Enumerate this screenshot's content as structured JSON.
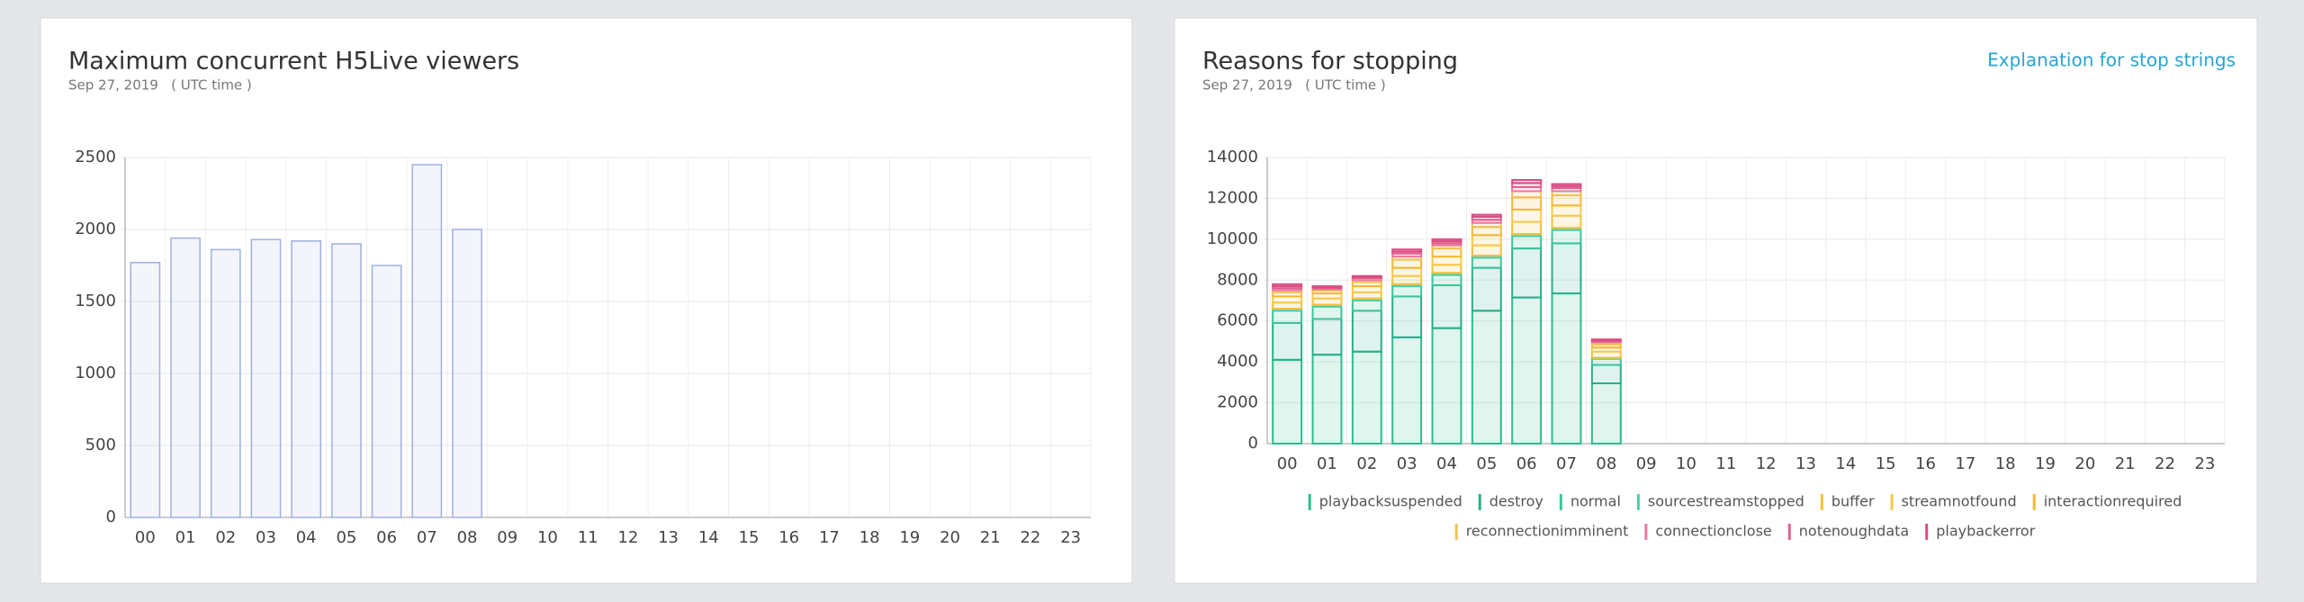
{
  "chart_data": [
    {
      "type": "bar",
      "title": "Maximum concurrent H5Live viewers",
      "subtitle": "Sep 27, 2019   ( UTC time )",
      "categories": [
        "00",
        "01",
        "02",
        "03",
        "04",
        "05",
        "06",
        "07",
        "08",
        "09",
        "10",
        "11",
        "12",
        "13",
        "14",
        "15",
        "16",
        "17",
        "18",
        "19",
        "20",
        "21",
        "22",
        "23"
      ],
      "values": [
        1770,
        1940,
        1860,
        1930,
        1920,
        1900,
        1750,
        2450,
        2000,
        null,
        null,
        null,
        null,
        null,
        null,
        null,
        null,
        null,
        null,
        null,
        null,
        null,
        null,
        null
      ],
      "color": "#9fb0e0",
      "ylim": [
        0,
        2500
      ],
      "yticks": [
        0,
        500,
        1000,
        1500,
        2000,
        2500
      ],
      "grid": true
    },
    {
      "type": "stacked_bar",
      "title": "Reasons for stopping",
      "subtitle": "Sep 27, 2019   ( UTC time )",
      "link": "Explanation for stop strings",
      "categories": [
        "00",
        "01",
        "02",
        "03",
        "04",
        "05",
        "06",
        "07",
        "08",
        "09",
        "10",
        "11",
        "12",
        "13",
        "14",
        "15",
        "16",
        "17",
        "18",
        "19",
        "20",
        "21",
        "22",
        "23"
      ],
      "series": [
        {
          "name": "playbacksuspended",
          "color": "#2bbd8e",
          "values": [
            4100,
            4350,
            4500,
            5200,
            5650,
            6500,
            7150,
            7350,
            2950,
            null,
            null,
            null,
            null,
            null,
            null,
            null,
            null,
            null,
            null,
            null,
            null,
            null,
            null,
            null
          ]
        },
        {
          "name": "destroy",
          "color": "#26b08a",
          "values": [
            1800,
            1750,
            2000,
            2000,
            2100,
            2100,
            2400,
            2450,
            900,
            null,
            null,
            null,
            null,
            null,
            null,
            null,
            null,
            null,
            null,
            null,
            null,
            null,
            null,
            null
          ]
        },
        {
          "name": "normal",
          "color": "#3cc59a",
          "values": [
            600,
            600,
            500,
            500,
            500,
            500,
            600,
            650,
            300,
            null,
            null,
            null,
            null,
            null,
            null,
            null,
            null,
            null,
            null,
            null,
            null,
            null,
            null,
            null
          ]
        },
        {
          "name": "sourcestreamstopped",
          "color": "#52cda6",
          "values": [
            100,
            100,
            100,
            100,
            100,
            100,
            100,
            100,
            50,
            null,
            null,
            null,
            null,
            null,
            null,
            null,
            null,
            null,
            null,
            null,
            null,
            null,
            null,
            null
          ]
        },
        {
          "name": "buffer",
          "color": "#f5c13b",
          "values": [
            300,
            300,
            300,
            400,
            400,
            500,
            600,
            600,
            300,
            null,
            null,
            null,
            null,
            null,
            null,
            null,
            null,
            null,
            null,
            null,
            null,
            null,
            null,
            null
          ]
        },
        {
          "name": "streamnotfound",
          "color": "#f7c94f",
          "values": [
            300,
            250,
            300,
            400,
            400,
            500,
            600,
            500,
            200,
            null,
            null,
            null,
            null,
            null,
            null,
            null,
            null,
            null,
            null,
            null,
            null,
            null,
            null,
            null
          ]
        },
        {
          "name": "interactionrequired",
          "color": "#f3b935",
          "values": [
            200,
            150,
            200,
            400,
            400,
            400,
            600,
            500,
            150,
            null,
            null,
            null,
            null,
            null,
            null,
            null,
            null,
            null,
            null,
            null,
            null,
            null,
            null,
            null
          ]
        },
        {
          "name": "reconnectionimminent",
          "color": "#f0c25a",
          "values": [
            100,
            50,
            100,
            150,
            150,
            200,
            300,
            200,
            100,
            null,
            null,
            null,
            null,
            null,
            null,
            null,
            null,
            null,
            null,
            null,
            null,
            null,
            null,
            null
          ]
        },
        {
          "name": "connectionclose",
          "color": "#e87aa0",
          "values": [
            100,
            50,
            100,
            150,
            100,
            150,
            200,
            150,
            50,
            null,
            null,
            null,
            null,
            null,
            null,
            null,
            null,
            null,
            null,
            null,
            null,
            null,
            null,
            null
          ]
        },
        {
          "name": "notenoughdata",
          "color": "#e0608f",
          "values": [
            100,
            50,
            50,
            100,
            100,
            150,
            200,
            100,
            50,
            null,
            null,
            null,
            null,
            null,
            null,
            null,
            null,
            null,
            null,
            null,
            null,
            null,
            null,
            null
          ]
        },
        {
          "name": "playbackerror",
          "color": "#d94c82",
          "values": [
            100,
            50,
            50,
            100,
            100,
            100,
            150,
            100,
            50,
            null,
            null,
            null,
            null,
            null,
            null,
            null,
            null,
            null,
            null,
            null,
            null,
            null,
            null,
            null
          ]
        }
      ],
      "ylim": [
        0,
        14000
      ],
      "yticks": [
        0,
        2000,
        4000,
        6000,
        8000,
        10000,
        12000,
        14000
      ],
      "grid": true
    }
  ]
}
